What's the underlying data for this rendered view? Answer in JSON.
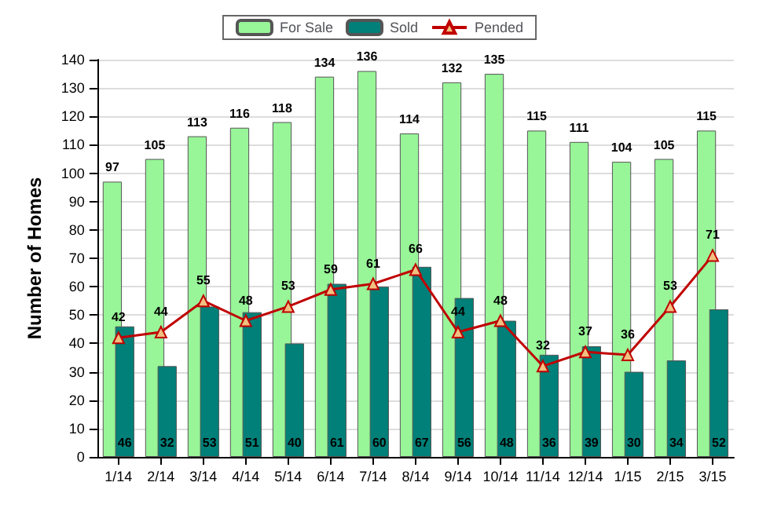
{
  "chart_data": {
    "type": "bar",
    "ylabel": "Number of Homes",
    "categories": [
      "1/14",
      "2/14",
      "3/14",
      "4/14",
      "5/14",
      "6/14",
      "7/14",
      "8/14",
      "9/14",
      "10/14",
      "11/14",
      "12/14",
      "1/15",
      "2/15",
      "3/15"
    ],
    "series": [
      {
        "name": "For Sale",
        "color": "#98f598",
        "values": [
          97,
          105,
          113,
          116,
          118,
          134,
          136,
          114,
          132,
          135,
          115,
          111,
          104,
          105,
          115
        ]
      },
      {
        "name": "Sold",
        "color": "#008078",
        "values": [
          46,
          32,
          53,
          51,
          40,
          61,
          60,
          67,
          56,
          48,
          36,
          39,
          30,
          34,
          52
        ]
      },
      {
        "name": "Pended",
        "type": "line",
        "color": "#c00000",
        "values": [
          42,
          44,
          55,
          48,
          53,
          59,
          61,
          66,
          44,
          48,
          32,
          37,
          36,
          53,
          71
        ]
      }
    ],
    "ylim": [
      0,
      140
    ],
    "yticks": [
      0,
      10,
      20,
      30,
      40,
      50,
      60,
      70,
      80,
      90,
      100,
      110,
      120,
      130,
      140
    ],
    "grid": "y",
    "legend": "top",
    "marker": "triangle",
    "data_labels": true
  }
}
